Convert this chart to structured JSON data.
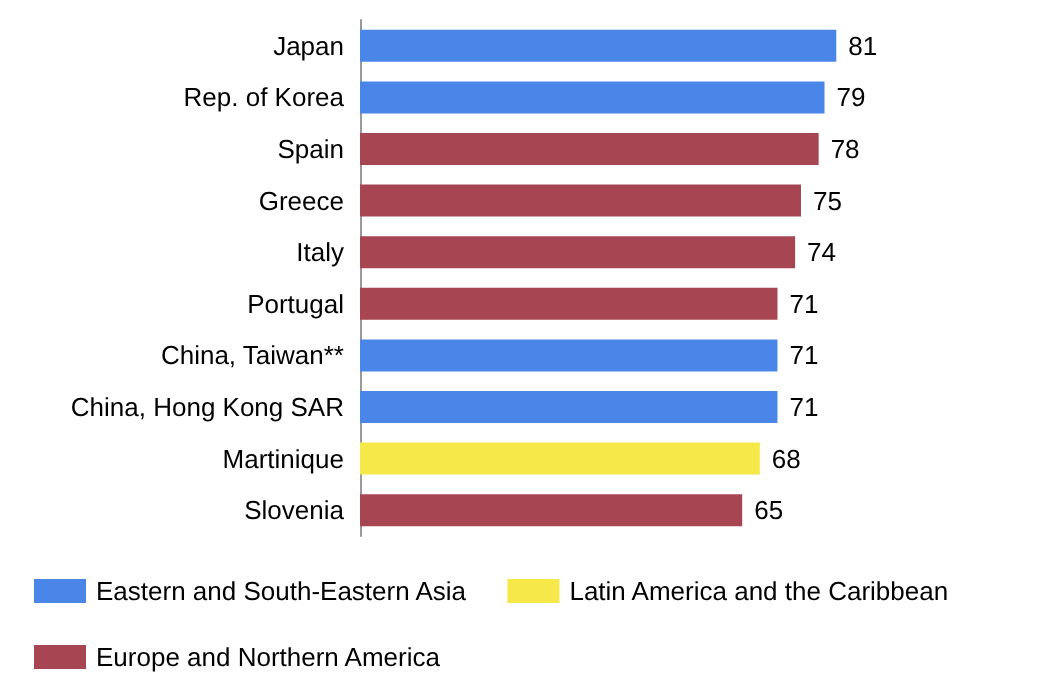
{
  "chart_data": {
    "type": "bar",
    "orientation": "horizontal",
    "categories": [
      "Japan",
      "Rep. of Korea",
      "Spain",
      "Greece",
      "Italy",
      "Portugal",
      "China, Taiwan**",
      "China, Hong Kong SAR",
      "Martinique",
      "Slovenia"
    ],
    "series": [
      {
        "name": "Eastern and South-Eastern Asia",
        "color": "#4a86e8",
        "values": [
          81,
          79,
          null,
          null,
          null,
          null,
          71,
          71,
          null,
          null
        ]
      },
      {
        "name": "Latin America and the Caribbean",
        "color": "#f7e84a",
        "values": [
          null,
          null,
          null,
          null,
          null,
          null,
          null,
          null,
          68,
          null
        ]
      },
      {
        "name": "Europe and Northern America",
        "color": "#a84552",
        "values": [
          null,
          null,
          78,
          75,
          74,
          71,
          null,
          null,
          null,
          65
        ]
      }
    ],
    "tick_labels": "y",
    "data_labels": true,
    "grid": false,
    "legend": "bottom"
  }
}
